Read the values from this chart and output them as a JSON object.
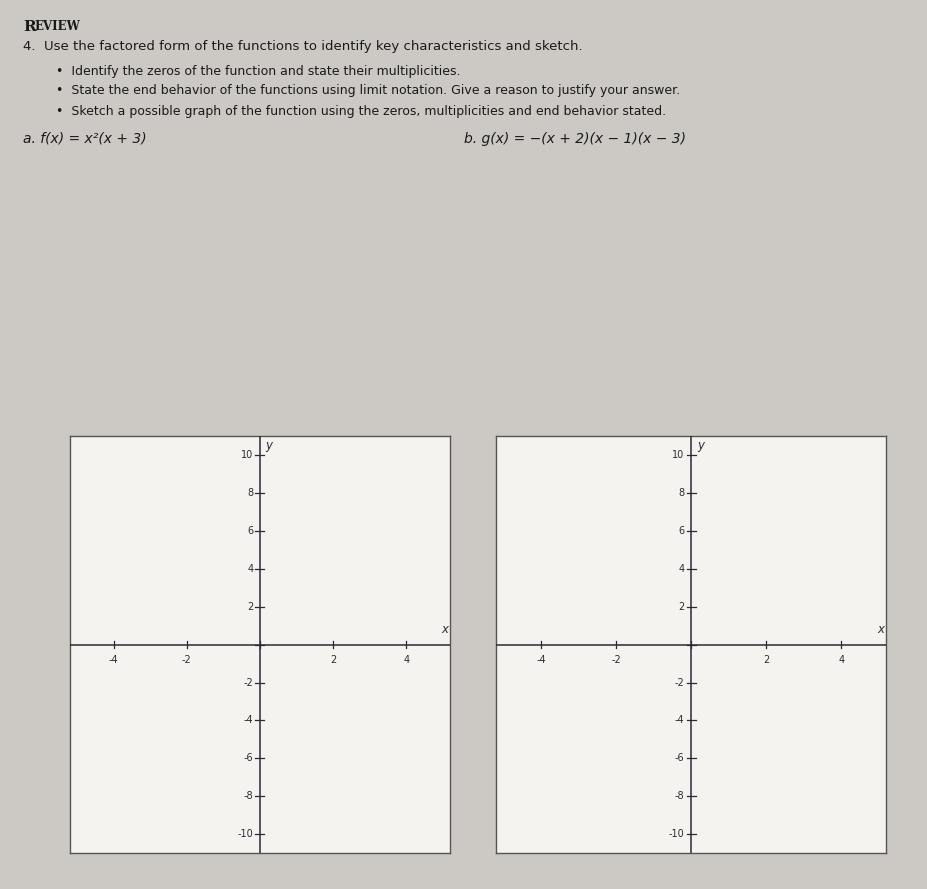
{
  "background_color": "#ccc9c5",
  "box_facecolor": "#f5f3f0",
  "box_edgecolor": "#555555",
  "axis_color": "#2a2a35",
  "text_color": "#1a1a1a",
  "title": "REVIEW",
  "problem_line": "4.  Use the factored form of the functions to identify key characteristics and sketch.",
  "bullet1": "•  Identify the zeros of the function and state their multiplicities.",
  "bullet2": "•  State the end behavior of the functions using limit notation. Give a reason to justify your answer.",
  "bullet3": "•  Sketch a possible graph of the function using the zeros, multiplicities and end behavior stated.",
  "label_a": "a. f(x) = x²(x + 3)",
  "label_b": "b. g(x) = −(x + 2)(x − 1)(x − 3)",
  "grid_xlim": [
    -5.2,
    5.2
  ],
  "grid_ylim": [
    -11.0,
    11.0
  ],
  "xticks": [
    -4,
    -2,
    2,
    4
  ],
  "yticks": [
    -10,
    -8,
    -6,
    -4,
    -2,
    2,
    4,
    6,
    8,
    10
  ],
  "xlabel": "x",
  "ylabel": "y",
  "tick_fontsize": 7.0,
  "label_fontsize": 8.5
}
